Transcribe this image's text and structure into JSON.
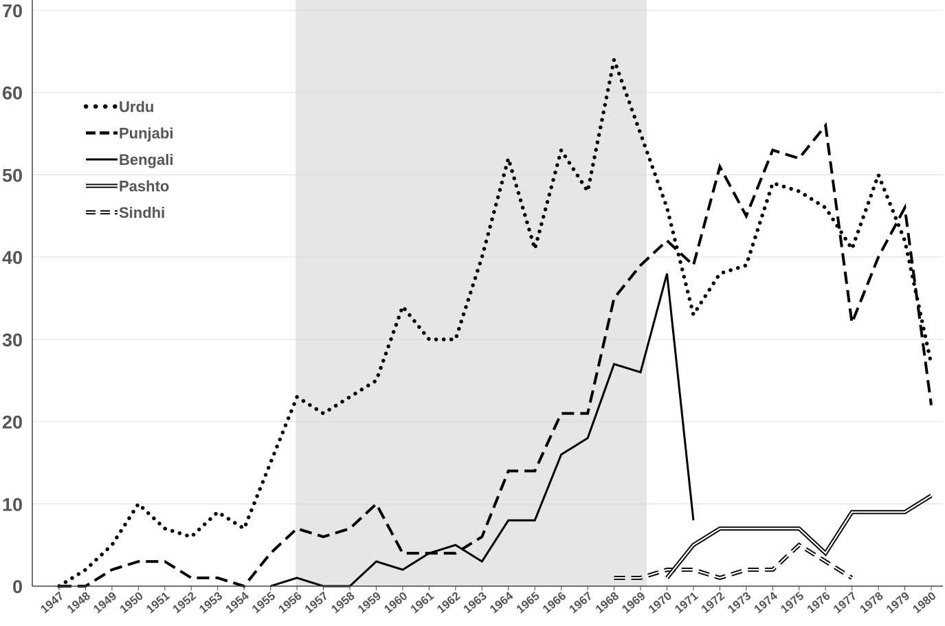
{
  "chart_data": {
    "type": "line",
    "title": "",
    "xlabel": "",
    "ylabel": "",
    "ylim": [
      0,
      70
    ],
    "yticks": [
      0,
      10,
      20,
      30,
      40,
      50,
      60,
      70
    ],
    "grid": "horizontal",
    "legend_position": "upper-left",
    "shaded_region": {
      "from": "1956",
      "to": "1969",
      "color": "#e6e6e6"
    },
    "categories": [
      "1947",
      "1948",
      "1949",
      "1950",
      "1951",
      "1952",
      "1953",
      "1954",
      "1955",
      "1956",
      "1957",
      "1958",
      "1959",
      "1960",
      "1961",
      "1962",
      "1963",
      "1964",
      "1965",
      "1966",
      "1967",
      "1968",
      "1969",
      "1970",
      "1971",
      "1972",
      "1973",
      "1974",
      "1975",
      "1976",
      "1977",
      "1978",
      "1979",
      "1980"
    ],
    "series": [
      {
        "name": "Urdu",
        "style": "dotted",
        "color": "#000000",
        "values": [
          0,
          2,
          5,
          10,
          7,
          6,
          9,
          7,
          15,
          23,
          21,
          23,
          25,
          34,
          30,
          30,
          40,
          52,
          41,
          53,
          48,
          64,
          55,
          46,
          33,
          38,
          39,
          49,
          48,
          46,
          41,
          50,
          42,
          27
        ]
      },
      {
        "name": "Punjabi",
        "style": "dashed",
        "color": "#000000",
        "values": [
          0,
          0,
          2,
          3,
          3,
          1,
          1,
          0,
          4,
          7,
          6,
          7,
          10,
          4,
          4,
          4,
          6,
          14,
          14,
          21,
          21,
          35,
          39,
          42,
          39,
          51,
          45,
          53,
          52,
          56,
          32,
          40,
          46,
          22
        ]
      },
      {
        "name": "Bengali",
        "style": "solid",
        "color": "#000000",
        "values": [
          null,
          null,
          null,
          null,
          null,
          null,
          null,
          null,
          0,
          1,
          0,
          0,
          3,
          2,
          4,
          5,
          3,
          8,
          8,
          16,
          18,
          27,
          26,
          38,
          8,
          null,
          null,
          null,
          null,
          null,
          null,
          null,
          null,
          null
        ]
      },
      {
        "name": "Pashto",
        "style": "double",
        "color": "#000000",
        "values": [
          null,
          null,
          null,
          null,
          null,
          null,
          null,
          null,
          null,
          null,
          null,
          null,
          null,
          null,
          null,
          null,
          null,
          null,
          null,
          null,
          null,
          null,
          null,
          1,
          5,
          7,
          7,
          7,
          7,
          4,
          9,
          9,
          9,
          11
        ]
      },
      {
        "name": "Sindhi",
        "style": "double-dashed",
        "color": "#000000",
        "values": [
          null,
          null,
          null,
          null,
          null,
          null,
          null,
          null,
          null,
          null,
          null,
          null,
          null,
          null,
          null,
          null,
          null,
          null,
          null,
          null,
          null,
          1,
          1,
          2,
          2,
          1,
          2,
          2,
          5,
          3,
          1,
          null,
          null,
          null
        ]
      }
    ]
  }
}
